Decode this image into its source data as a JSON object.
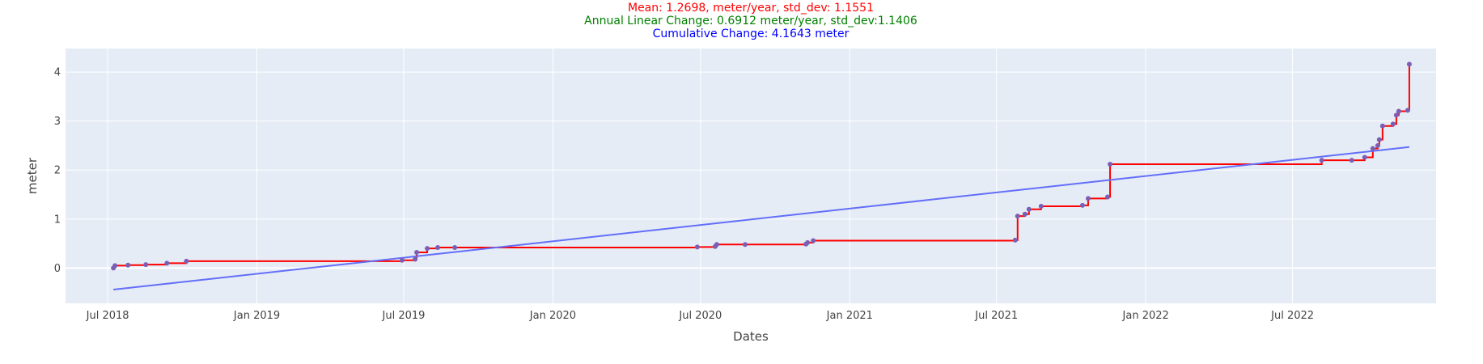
{
  "chart_data": {
    "type": "line",
    "title_lines": [
      {
        "text": "Mean: 1.2698, meter/year, std_dev: 1.1551",
        "color": "#ff0000"
      },
      {
        "text": "Annual Linear Change: 0.6912 meter/year, std_dev:1.1406",
        "color": "#008000"
      },
      {
        "text": "Cumulative Change: 4.1643 meter",
        "color": "#0000ff"
      }
    ],
    "xlabel": "Dates",
    "ylabel": "meter",
    "xlim": [
      "2018-05-10",
      "2022-12-25"
    ],
    "ylim": [
      -0.72,
      4.48
    ],
    "x_ticks": [
      {
        "date": "2018-07-01",
        "label": "Jul 2018"
      },
      {
        "date": "2019-01-01",
        "label": "Jan 2019"
      },
      {
        "date": "2019-07-01",
        "label": "Jul 2019"
      },
      {
        "date": "2020-01-01",
        "label": "Jan 2020"
      },
      {
        "date": "2020-07-01",
        "label": "Jul 2020"
      },
      {
        "date": "2021-01-01",
        "label": "Jan 2021"
      },
      {
        "date": "2021-07-01",
        "label": "Jul 2021"
      },
      {
        "date": "2022-01-01",
        "label": "Jan 2022"
      },
      {
        "date": "2022-07-01",
        "label": "Jul 2022"
      }
    ],
    "y_ticks": [
      {
        "value": 0,
        "label": "0"
      },
      {
        "value": 1,
        "label": "1"
      },
      {
        "value": 2,
        "label": "2"
      },
      {
        "value": 3,
        "label": "3"
      },
      {
        "value": 4,
        "label": "4"
      }
    ],
    "grid": true,
    "background": "#e5ecf6",
    "series": [
      {
        "color": "#ff0000",
        "marker_color": "#7b5fb5",
        "line_shape": "step",
        "points": [
          {
            "x": "2018-07-08",
            "y": 0.0
          },
          {
            "x": "2018-07-10",
            "y": 0.05
          },
          {
            "x": "2018-07-26",
            "y": 0.06
          },
          {
            "x": "2018-08-17",
            "y": 0.07
          },
          {
            "x": "2018-09-12",
            "y": 0.1
          },
          {
            "x": "2018-10-06",
            "y": 0.14
          },
          {
            "x": "2019-06-29",
            "y": 0.16
          },
          {
            "x": "2019-07-15",
            "y": 0.18
          },
          {
            "x": "2019-07-17",
            "y": 0.32
          },
          {
            "x": "2019-07-30",
            "y": 0.4
          },
          {
            "x": "2019-08-12",
            "y": 0.42
          },
          {
            "x": "2019-09-02",
            "y": 0.42
          },
          {
            "x": "2020-06-27",
            "y": 0.43
          },
          {
            "x": "2020-07-19",
            "y": 0.44
          },
          {
            "x": "2020-07-21",
            "y": 0.48
          },
          {
            "x": "2020-08-25",
            "y": 0.48
          },
          {
            "x": "2020-11-08",
            "y": 0.49
          },
          {
            "x": "2020-11-10",
            "y": 0.52
          },
          {
            "x": "2020-11-17",
            "y": 0.56
          },
          {
            "x": "2021-07-24",
            "y": 0.57
          },
          {
            "x": "2021-07-27",
            "y": 1.06
          },
          {
            "x": "2021-08-05",
            "y": 1.1
          },
          {
            "x": "2021-08-10",
            "y": 1.2
          },
          {
            "x": "2021-08-25",
            "y": 1.26
          },
          {
            "x": "2021-10-15",
            "y": 1.28
          },
          {
            "x": "2021-10-22",
            "y": 1.42
          },
          {
            "x": "2021-11-15",
            "y": 1.45
          },
          {
            "x": "2021-11-18",
            "y": 2.12
          },
          {
            "x": "2022-08-06",
            "y": 2.2
          },
          {
            "x": "2022-09-12",
            "y": 2.2
          },
          {
            "x": "2022-09-28",
            "y": 2.26
          },
          {
            "x": "2022-10-08",
            "y": 2.44
          },
          {
            "x": "2022-10-14",
            "y": 2.5
          },
          {
            "x": "2022-10-16",
            "y": 2.62
          },
          {
            "x": "2022-10-20",
            "y": 2.9
          },
          {
            "x": "2022-11-02",
            "y": 2.94
          },
          {
            "x": "2022-11-06",
            "y": 3.12
          },
          {
            "x": "2022-11-09",
            "y": 3.2
          },
          {
            "x": "2022-11-20",
            "y": 3.22
          },
          {
            "x": "2022-11-22",
            "y": 4.16
          }
        ]
      },
      {
        "color": "#636efa",
        "line_shape": "linear",
        "points": [
          {
            "x": "2018-07-08",
            "y": -0.44
          },
          {
            "x": "2022-11-22",
            "y": 2.47
          }
        ]
      }
    ]
  }
}
